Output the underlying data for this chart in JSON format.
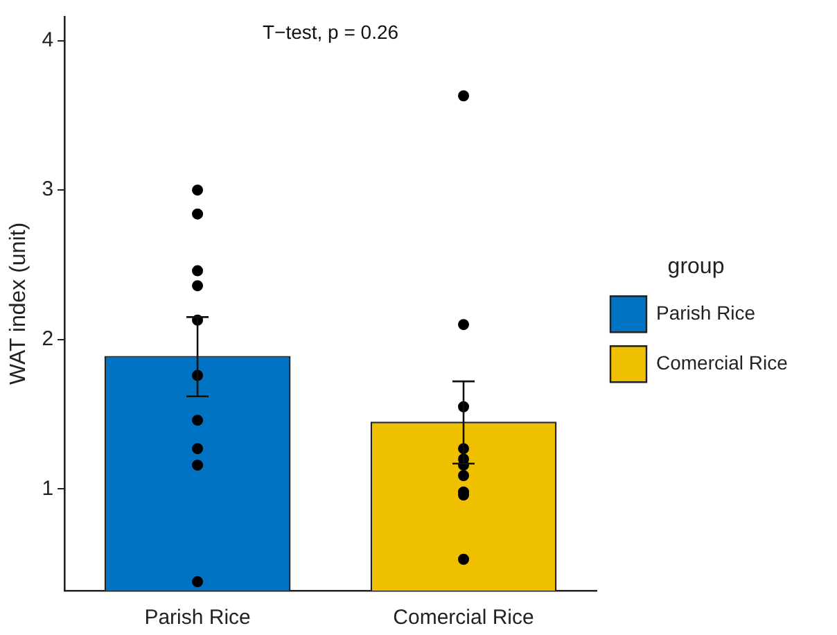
{
  "chart_data": {
    "type": "bar",
    "ylabel": "WAT index (unit)",
    "categories": [
      "Parish Rice",
      "Comercial Rice"
    ],
    "series": [
      {
        "name": "Parish Rice",
        "color": "#0073c2",
        "values": [
          1.89,
          null
        ],
        "errors": [
          [
            1.62,
            2.15
          ],
          null
        ]
      },
      {
        "name": "Comercial Rice",
        "color": "#efc000",
        "values": [
          null,
          1.45
        ],
        "errors": [
          null,
          [
            1.17,
            1.72
          ]
        ]
      },
      {
        "type": "scatter",
        "color": "#000000",
        "x": [
          "Parish Rice",
          "Parish Rice",
          "Parish Rice",
          "Parish Rice",
          "Parish Rice",
          "Parish Rice",
          "Parish Rice",
          "Parish Rice",
          "Parish Rice",
          "Parish Rice",
          "Comercial Rice",
          "Comercial Rice",
          "Comercial Rice",
          "Comercial Rice",
          "Comercial Rice",
          "Comercial Rice",
          "Comercial Rice",
          "Comercial Rice",
          "Comercial Rice",
          "Comercial Rice"
        ],
        "values": [
          2.36,
          2.84,
          3.0,
          2.46,
          2.13,
          1.76,
          1.46,
          1.27,
          1.16,
          0.38,
          3.63,
          2.1,
          1.55,
          1.27,
          1.2,
          1.16,
          1.09,
          0.96,
          0.98,
          0.53
        ]
      }
    ],
    "marker": "circle",
    "ylim": [
      0.32,
      4.16
    ],
    "yticks": [
      1,
      2,
      3,
      4
    ],
    "grid": false,
    "legend": "right",
    "legend_title": "group",
    "annotations": [
      "T−test, p = 0.26"
    ]
  }
}
